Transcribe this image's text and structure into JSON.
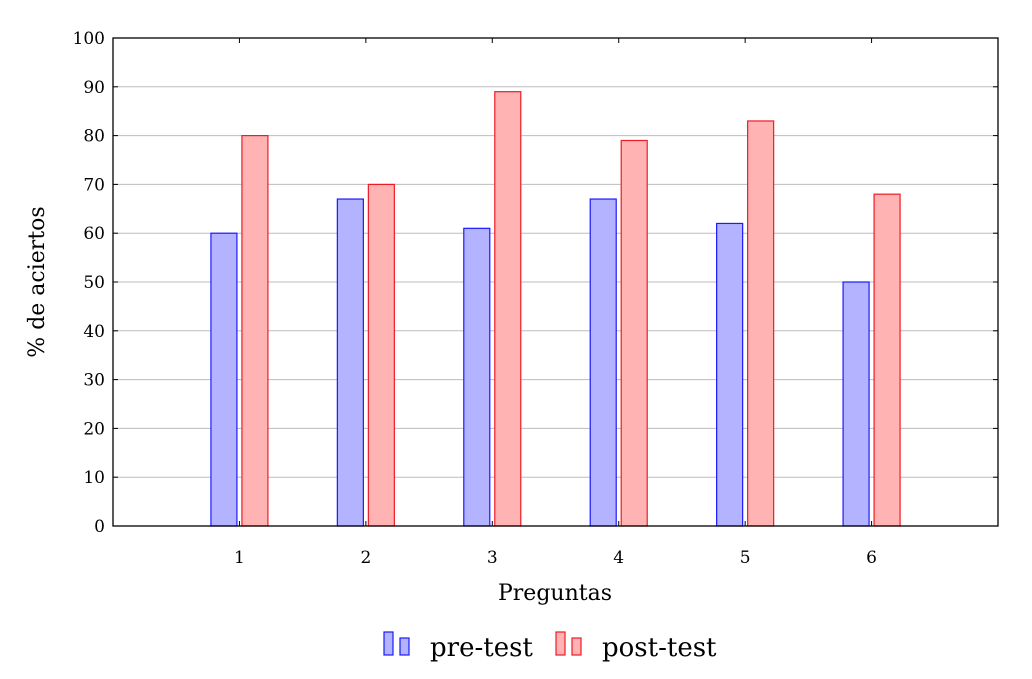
{
  "chart_data": {
    "type": "bar",
    "categories": [
      "1",
      "2",
      "3",
      "4",
      "5",
      "6"
    ],
    "series": [
      {
        "name": "pre-test",
        "values": [
          60,
          67,
          61,
          67,
          62,
          50
        ],
        "fill": "#b3b3ff",
        "stroke": "#1a1aff"
      },
      {
        "name": "post-test",
        "values": [
          80,
          70,
          89,
          79,
          83,
          68
        ],
        "fill": "#ffb3b3",
        "stroke": "#ee1c25"
      }
    ],
    "xlabel": "Preguntas",
    "ylabel": "% de aciertos",
    "ylim": [
      0,
      100
    ],
    "xlim": [
      0,
      7
    ],
    "yticks": [
      0,
      10,
      20,
      30,
      40,
      50,
      60,
      70,
      80,
      90,
      100
    ],
    "grid": "horizontal",
    "legend_position": "bottom"
  }
}
